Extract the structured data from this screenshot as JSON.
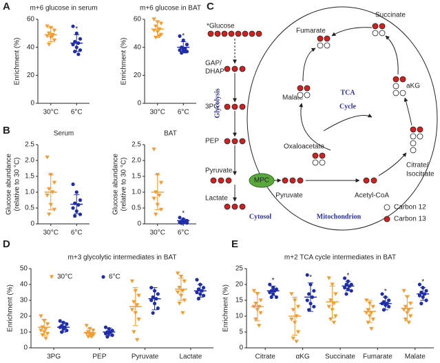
{
  "panel_letters": [
    "A",
    "B",
    "C",
    "D",
    "E"
  ],
  "chart_data": [
    {
      "type": "dot",
      "title": "m+6 glucose in serum",
      "ylabel": [
        "Enrichment (%)"
      ],
      "categories": [
        "30°C",
        "6°C"
      ],
      "colors": [
        "#f39c33",
        "#1f2ea8"
      ],
      "markers": [
        "triangle",
        "circle"
      ],
      "values": [
        [
          55,
          54,
          52,
          50,
          49,
          48,
          47,
          45,
          42,
          48
        ],
        [
          55,
          50,
          46,
          44,
          43,
          42,
          40,
          38,
          37,
          35
        ]
      ],
      "means": [
        49,
        43
      ],
      "sd": [
        5,
        6
      ],
      "ylim": [
        0,
        60
      ],
      "yticks": [
        0,
        20,
        40,
        60
      ],
      "annotations": [
        {
          "text": "*",
          "category": 1
        }
      ]
    },
    {
      "type": "dot",
      "title": "m+6 glucose in BAT",
      "ylabel": [
        "Enrichment (%)"
      ],
      "categories": [
        "30°C",
        "6°C"
      ],
      "colors": [
        "#f39c33",
        "#1f2ea8"
      ],
      "markers": [
        "triangle",
        "circle"
      ],
      "values": [
        [
          60,
          58,
          57,
          55,
          53,
          52,
          51,
          49,
          47,
          48
        ],
        [
          48,
          45,
          42,
          40,
          39,
          38,
          38,
          37,
          36,
          37
        ]
      ],
      "means": [
        53,
        40
      ],
      "sd": [
        6,
        4
      ],
      "ylim": [
        0,
        60
      ],
      "yticks": [
        0,
        20,
        40,
        60
      ],
      "annotations": [
        {
          "text": "*",
          "category": 1
        }
      ]
    },
    {
      "type": "dot",
      "title": "Serum",
      "ylabel": [
        "Glucose abundance",
        "(relative to 30 °C)"
      ],
      "categories": [
        "30°C",
        "6°C"
      ],
      "colors": [
        "#f39c33",
        "#1f2ea8"
      ],
      "markers": [
        "triangle",
        "circle"
      ],
      "values": [
        [
          2.1,
          1.55,
          1.3,
          1.1,
          1.0,
          0.9,
          0.6,
          0.45,
          0.3
        ],
        [
          1.25,
          1.0,
          0.75,
          0.65,
          0.6,
          0.5,
          0.4,
          0.3,
          0.25
        ]
      ],
      "means": [
        1.0,
        0.62
      ],
      "sd": [
        0.55,
        0.3
      ],
      "ylim": [
        0,
        2.5
      ],
      "yticks": [
        0,
        0.5,
        {
          "value": 1,
          "label": "1.0"
        },
        1.5,
        {
          "value": 2,
          "label": "2.0"
        },
        2.5
      ],
      "annotations": []
    },
    {
      "type": "dot",
      "title": "BAT",
      "ylabel": [
        "Glucose abundance",
        "(relative to 30 °C)"
      ],
      "categories": [
        "30°C",
        "6°C"
      ],
      "colors": [
        "#f39c33",
        "#1f2ea8"
      ],
      "markers": [
        "triangle",
        "circle"
      ],
      "values": [
        [
          2.35,
          1.55,
          1.3,
          1.0,
          0.9,
          0.8,
          0.6,
          0.45,
          0.3
        ],
        [
          0.2,
          0.15,
          0.1,
          0.08,
          0.07,
          0.05,
          0.05,
          0.03,
          0.02
        ]
      ],
      "means": [
        1.0,
        0.1
      ],
      "sd": [
        0.55,
        0.05
      ],
      "ylim": [
        0,
        2.5
      ],
      "yticks": [
        0,
        0.5,
        {
          "value": 1,
          "label": "1.0"
        },
        1.5,
        {
          "value": 2,
          "label": "2.0"
        },
        2.5
      ],
      "annotations": [
        {
          "text": "*",
          "category": 1
        }
      ]
    },
    {
      "type": "grouped-dot",
      "title": "m+3 glycolytic intermediates in BAT",
      "ylabel": [
        "Enrichment (%)"
      ],
      "categories": [
        "3PG",
        "PEP",
        "Pyruvate",
        "Lactate"
      ],
      "legend": "upper left",
      "series": [
        {
          "name": "30°C",
          "color": "#f39c33",
          "marker": "triangle",
          "values": [
            [
              20,
              17,
              15,
              13,
              12,
              11,
              10,
              9,
              8,
              6
            ],
            [
              14,
              12,
              11,
              10,
              9,
              9,
              8,
              8,
              7,
              7
            ],
            [
              42,
              36,
              33,
              29,
              27,
              24,
              22,
              18,
              10,
              5
            ],
            [
              47,
              45,
              42,
              38,
              36,
              35,
              33,
              30,
              28,
              22
            ]
          ],
          "means": [
            13,
            9.5,
            26,
            37
          ],
          "sd": [
            5,
            2.5,
            12,
            7
          ]
        },
        {
          "name": "6°C",
          "color": "#1f2ea8",
          "marker": "circle",
          "values": [
            [
              17,
              16,
              15,
              14,
              13,
              13,
              12,
              11,
              10
            ],
            [
              13,
              12,
              11,
              10,
              10,
              9,
              9,
              8,
              7
            ],
            [
              38,
              36,
              34,
              32,
              31,
              30,
              28,
              25,
              22
            ],
            [
              43,
              40,
              38,
              37,
              36,
              35,
              34,
              33,
              31
            ]
          ],
          "means": [
            13,
            10,
            31,
            36
          ],
          "sd": [
            3,
            2.5,
            7,
            4
          ]
        }
      ],
      "ylim": [
        0,
        50
      ],
      "yticks": [
        0,
        10,
        20,
        30,
        40,
        50
      ],
      "annotations": []
    },
    {
      "type": "grouped-dot",
      "title": "m+2 TCA cycle intermediates in BAT",
      "ylabel": [
        "Enrichment (%)"
      ],
      "categories": [
        "Citrate",
        "αKG",
        "Succinate",
        "Fumarate",
        "Malate"
      ],
      "series": [
        {
          "color": "#f39c33",
          "marker": "triangle",
          "values": [
            [
              18,
              17,
              15,
              14,
              13,
              13,
              12,
              11,
              9,
              7
            ],
            [
              17,
              15,
              13,
              12,
              10,
              9,
              8,
              5,
              3,
              2
            ],
            [
              22,
              20,
              17,
              15,
              14,
              13,
              12,
              10,
              9,
              8
            ],
            [
              15,
              14,
              13,
              12,
              11,
              11,
              10,
              9,
              8,
              6
            ],
            [
              18,
              16,
              14,
              13,
              12,
              12,
              11,
              10,
              9,
              8
            ]
          ],
          "means": [
            13,
            10,
            14.5,
            11.5,
            12.5
          ],
          "sd": [
            4.5,
            6,
            5,
            3.5,
            4
          ]
        },
        {
          "color": "#1f2ea8",
          "marker": "circle",
          "values": [
            [
              20,
              19,
              18.5,
              18,
              18,
              17.5,
              17,
              16,
              16
            ],
            [
              23,
              20,
              18,
              17,
              16,
              15,
              14,
              13,
              12
            ],
            [
              22,
              21,
              20,
              20,
              19.5,
              19,
              18.5,
              18,
              17
            ],
            [
              17,
              16,
              15,
              14.5,
              14,
              14,
              13.5,
              13,
              12
            ],
            [
              20,
              19,
              18,
              17.5,
              17,
              16.5,
              16,
              15,
              14
            ]
          ],
          "means": [
            18,
            16,
            19.5,
            14,
            17
          ],
          "sd": [
            1.5,
            4.5,
            1.5,
            2,
            2
          ]
        }
      ],
      "ylim": [
        0,
        25
      ],
      "yticks": [
        0,
        5,
        10,
        15,
        20,
        25
      ],
      "annotations": [
        {
          "text": "*",
          "category": 0,
          "series": 1
        },
        {
          "text": "*",
          "category": 1,
          "series": 1
        },
        {
          "text": "*",
          "category": 2,
          "series": 1
        },
        {
          "text": "*",
          "category": 3,
          "series": 1
        },
        {
          "text": "*",
          "category": 4,
          "series": 1
        }
      ]
    }
  ],
  "diagram": {
    "glycolysis_label": "Glycolysis",
    "cytosol": "Cytosol",
    "mitochondrion": "Mitochondrion",
    "tca": [
      "TCA",
      "Cycle"
    ],
    "transporter": "MPC",
    "glycolytic": [
      "*Glucose",
      "GAP/",
      "DHAP",
      "3PG",
      "PEP",
      "Pyruvate",
      "Lactate"
    ],
    "mito": [
      "Pyruvate",
      "Acetyl-CoA",
      "Oxaloacetate",
      "Citrate/",
      "Isocitrate",
      "Malate",
      "Fumarate",
      "Succinate",
      "aKG"
    ],
    "legend": [
      "Carbon 12",
      "Carbon 13"
    ]
  }
}
